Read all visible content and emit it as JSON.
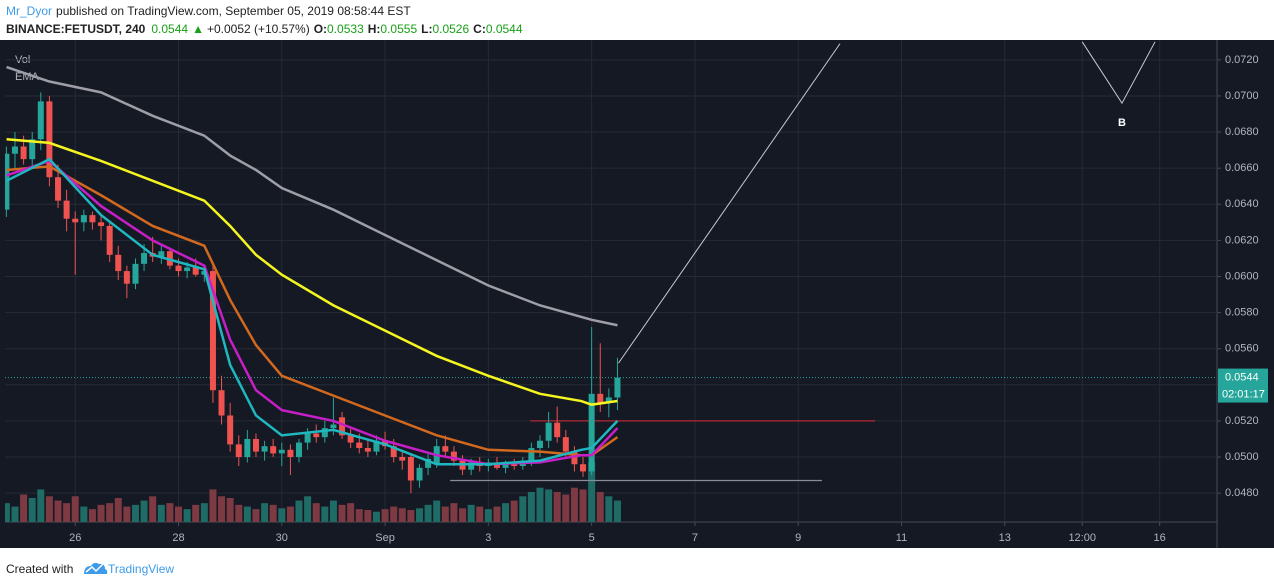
{
  "header": {
    "author": "Mr_Dyor",
    "published": "published on TradingView.com, September 05, 2019 08:58:44 EST",
    "symbol": "BINANCE:FETUSDT, 240",
    "last": "0.0544",
    "arrow": "▲",
    "change": "+0.0052 (+10.57%)",
    "o_label": "O:",
    "o": "0.0533",
    "h_label": "H:",
    "h": "0.0555",
    "l_label": "L:",
    "l": "0.0526",
    "c_label": "C:",
    "c": "0.0544"
  },
  "footer": {
    "created": "Created with",
    "brand": "TradingView"
  },
  "chart_data": {
    "type": "candlestick",
    "legend": [
      "Vol",
      "EMA"
    ],
    "up_color": "#26a69a",
    "down_color": "#ef5350",
    "volume_up_color": "#1f6b66",
    "volume_down_color": "#7d3a42",
    "x": [
      24.667,
      24.833,
      25,
      25.167,
      25.333,
      25.5,
      25.667,
      25.833,
      26,
      26.167,
      26.333,
      26.5,
      26.667,
      26.833,
      27,
      27.167,
      27.333,
      27.5,
      27.667,
      27.833,
      28,
      28.167,
      28.333,
      28.5,
      28.667,
      28.833,
      29,
      29.167,
      29.333,
      29.5,
      29.667,
      29.833,
      30,
      30.167,
      30.333,
      30.5,
      30.667,
      30.833,
      31,
      31.167,
      31.333,
      31.5,
      31.667,
      31.833,
      32,
      32.167,
      32.333,
      32.5,
      32.667,
      32.833,
      33,
      33.167,
      33.333,
      33.5,
      33.667,
      33.833,
      34,
      34.167,
      34.333,
      34.5,
      34.667,
      34.833,
      35,
      35.167,
      35.333,
      35.5,
      35.667,
      35.833,
      36,
      36.167,
      36.333,
      36.5
    ],
    "open": [
      0.0637,
      0.0668,
      0.0672,
      0.0665,
      0.0676,
      0.0697,
      0.0655,
      0.0642,
      0.0632,
      0.063,
      0.0634,
      0.063,
      0.0628,
      0.0612,
      0.0603,
      0.0596,
      0.0607,
      0.0613,
      0.0611,
      0.0614,
      0.0606,
      0.0603,
      0.0605,
      0.0601,
      0.0603,
      0.0537,
      0.0523,
      0.0507,
      0.05,
      0.051,
      0.0503,
      0.0506,
      0.0502,
      0.0504,
      0.05,
      0.0508,
      0.0513,
      0.0511,
      0.0516,
      0.0522,
      0.0512,
      0.0508,
      0.0505,
      0.0503,
      0.0509,
      0.0506,
      0.05,
      0.05,
      0.0487,
      0.0494,
      0.0496,
      0.0506,
      0.0503,
      0.0498,
      0.0493,
      0.0497,
      0.0495,
      0.0497,
      0.0494,
      0.0496,
      0.0495,
      0.0498,
      0.0505,
      0.0509,
      0.0519,
      0.0511,
      0.0503,
      0.0496,
      0.0492,
      0.0535,
      0.053,
      0.0533
    ],
    "high": [
      0.0672,
      0.068,
      0.0678,
      0.068,
      0.0702,
      0.07,
      0.0662,
      0.0648,
      0.0636,
      0.0637,
      0.0636,
      0.0635,
      0.063,
      0.0617,
      0.0606,
      0.061,
      0.0618,
      0.0622,
      0.0618,
      0.0616,
      0.061,
      0.0608,
      0.061,
      0.0606,
      0.0606,
      0.0545,
      0.053,
      0.0512,
      0.0515,
      0.0513,
      0.0509,
      0.051,
      0.0508,
      0.0507,
      0.051,
      0.0516,
      0.0518,
      0.052,
      0.0533,
      0.0525,
      0.0517,
      0.0513,
      0.051,
      0.0512,
      0.0514,
      0.051,
      0.0504,
      0.0502,
      0.0496,
      0.0502,
      0.051,
      0.0512,
      0.0506,
      0.0501,
      0.0499,
      0.05,
      0.0499,
      0.05,
      0.0498,
      0.0499,
      0.05,
      0.0508,
      0.0512,
      0.0525,
      0.0528,
      0.0515,
      0.0506,
      0.05,
      0.0572,
      0.0563,
      0.0538,
      0.0555
    ],
    "low": [
      0.0633,
      0.066,
      0.0662,
      0.066,
      0.067,
      0.065,
      0.0638,
      0.0625,
      0.0601,
      0.0625,
      0.0626,
      0.062,
      0.0608,
      0.0598,
      0.0588,
      0.0593,
      0.0603,
      0.0608,
      0.0607,
      0.0604,
      0.06,
      0.0599,
      0.06,
      0.0597,
      0.053,
      0.0518,
      0.0503,
      0.0495,
      0.0497,
      0.05,
      0.0498,
      0.05,
      0.0495,
      0.049,
      0.0497,
      0.0504,
      0.0508,
      0.0508,
      0.0512,
      0.051,
      0.0505,
      0.0502,
      0.05,
      0.0501,
      0.0504,
      0.0497,
      0.0493,
      0.048,
      0.0483,
      0.049,
      0.0494,
      0.05,
      0.0495,
      0.049,
      0.049,
      0.0492,
      0.0492,
      0.0493,
      0.0491,
      0.0493,
      0.0493,
      0.0495,
      0.05,
      0.0505,
      0.0508,
      0.05,
      0.0492,
      0.0489,
      0.049,
      0.0525,
      0.0522,
      0.0526
    ],
    "close": [
      0.0668,
      0.0672,
      0.0665,
      0.0676,
      0.0697,
      0.0655,
      0.0642,
      0.0632,
      0.063,
      0.0634,
      0.063,
      0.0628,
      0.0612,
      0.0603,
      0.0596,
      0.0607,
      0.0613,
      0.0611,
      0.0614,
      0.0606,
      0.0603,
      0.0605,
      0.0601,
      0.0603,
      0.0537,
      0.0523,
      0.0507,
      0.05,
      0.051,
      0.0503,
      0.0506,
      0.0502,
      0.0504,
      0.05,
      0.0508,
      0.0513,
      0.0511,
      0.0516,
      0.0518,
      0.0512,
      0.0508,
      0.0505,
      0.0503,
      0.0509,
      0.0506,
      0.05,
      0.0498,
      0.0487,
      0.0494,
      0.0499,
      0.0506,
      0.0503,
      0.0498,
      0.0493,
      0.0497,
      0.0495,
      0.0497,
      0.0494,
      0.0496,
      0.0495,
      0.0498,
      0.0505,
      0.0509,
      0.0519,
      0.0511,
      0.0503,
      0.0496,
      0.0492,
      0.0535,
      0.053,
      0.0533,
      0.0544
    ],
    "volume": [
      22,
      18,
      32,
      28,
      38,
      30,
      25,
      22,
      30,
      18,
      15,
      20,
      22,
      28,
      18,
      20,
      25,
      30,
      20,
      22,
      18,
      15,
      20,
      22,
      38,
      30,
      28,
      20,
      18,
      15,
      22,
      20,
      16,
      18,
      25,
      30,
      22,
      18,
      25,
      20,
      22,
      15,
      14,
      12,
      15,
      18,
      16,
      14,
      16,
      20,
      25,
      18,
      22,
      16,
      20,
      18,
      15,
      18,
      22,
      25,
      30,
      35,
      40,
      38,
      35,
      32,
      40,
      38,
      70,
      35,
      30,
      25
    ],
    "ema": [
      {
        "color": "#9e9ea6",
        "x": [
          24.67,
          25.5,
          26.5,
          27.5,
          28.5,
          29,
          29.5,
          30,
          31,
          32,
          33,
          34,
          35,
          36,
          36.5
        ],
        "values": [
          0.0716,
          0.0708,
          0.0702,
          0.0689,
          0.0678,
          0.0667,
          0.0659,
          0.0649,
          0.0637,
          0.0623,
          0.0609,
          0.0595,
          0.0584,
          0.0576,
          0.0573
        ]
      },
      {
        "color": "#f5f520",
        "x": [
          24.67,
          25.5,
          26.5,
          27.5,
          28.5,
          29,
          29.5,
          30,
          31,
          32,
          33,
          34,
          35,
          35.8,
          36,
          36.5
        ],
        "values": [
          0.0676,
          0.0674,
          0.0664,
          0.0653,
          0.0642,
          0.0628,
          0.0612,
          0.0601,
          0.0584,
          0.057,
          0.0556,
          0.0545,
          0.0535,
          0.0531,
          0.0529,
          0.0531
        ]
      },
      {
        "color": "#d2691e",
        "x": [
          24.67,
          25.5,
          26.5,
          27.5,
          28.5,
          29,
          29.5,
          30,
          31,
          32,
          33,
          34,
          35,
          35.8,
          36,
          36.5
        ],
        "values": [
          0.0659,
          0.0661,
          0.0645,
          0.0628,
          0.0617,
          0.0587,
          0.0562,
          0.0545,
          0.0534,
          0.0523,
          0.0512,
          0.0504,
          0.0503,
          0.0501,
          0.0501,
          0.0511
        ]
      },
      {
        "color": "#c71fc7",
        "x": [
          24.67,
          25.5,
          26.5,
          27.5,
          28.5,
          29,
          29.5,
          30,
          31,
          32,
          33,
          34,
          35,
          35.8,
          36,
          36.5
        ],
        "values": [
          0.0656,
          0.0664,
          0.0639,
          0.062,
          0.0606,
          0.0565,
          0.0537,
          0.0526,
          0.052,
          0.0509,
          0.0501,
          0.0496,
          0.0497,
          0.0501,
          0.0501,
          0.0516
        ]
      },
      {
        "color": "#1fb7c0",
        "x": [
          24.67,
          25.5,
          26.5,
          27.5,
          28.5,
          29,
          29.5,
          30,
          31,
          32,
          33,
          34,
          35,
          35.8,
          36,
          36.5
        ],
        "values": [
          0.0653,
          0.0665,
          0.0634,
          0.0612,
          0.0604,
          0.0551,
          0.0523,
          0.0512,
          0.0515,
          0.0507,
          0.0496,
          0.0496,
          0.0498,
          0.0504,
          0.0505,
          0.052
        ]
      }
    ],
    "hlines": [
      {
        "value": 0.052,
        "color": "#b22833",
        "x": [
          34.81,
          41.49
        ]
      },
      {
        "value": 0.0487,
        "color": "#8a8d96",
        "x": [
          33.26,
          40.46
        ]
      }
    ],
    "drawings": [
      {
        "x": [
          36.52,
          40.81
        ],
        "y": [
          0.0552,
          0.0729
        ]
      },
      {
        "x": [
          45.5,
          46.27,
          46.91
        ],
        "y": [
          0.073,
          0.0696,
          0.073
        ],
        "label": "B"
      }
    ],
    "last_price": {
      "value": 0.0544,
      "label": "0.0544"
    },
    "countdown": "02:01:17",
    "xlim": [
      24.64,
      48.11
    ],
    "ylim": [
      0.0464,
      0.0731
    ],
    "xticks": [
      {
        "value": 26,
        "label": "26"
      },
      {
        "value": 28,
        "label": "28"
      },
      {
        "value": 30,
        "label": "30"
      },
      {
        "value": 32,
        "label": "Sep"
      },
      {
        "value": 34,
        "label": "3"
      },
      {
        "value": 36,
        "label": "5"
      },
      {
        "value": 38,
        "label": "7"
      },
      {
        "value": 40,
        "label": "9"
      },
      {
        "value": 42,
        "label": "11"
      },
      {
        "value": 44,
        "label": "13"
      },
      {
        "value": 45.5,
        "label": "12:00"
      },
      {
        "value": 47,
        "label": "16"
      }
    ],
    "yticks": [
      {
        "value": 0.048,
        "label": "0.0480"
      },
      {
        "value": 0.05,
        "label": "0.0500"
      },
      {
        "value": 0.052,
        "label": "0.0520"
      },
      {
        "value": 0.054,
        "label": "0.0540"
      },
      {
        "value": 0.056,
        "label": "0.0560"
      },
      {
        "value": 0.058,
        "label": "0.0580"
      },
      {
        "value": 0.06,
        "label": "0.0600"
      },
      {
        "value": 0.062,
        "label": "0.0620"
      },
      {
        "value": 0.064,
        "label": "0.0640"
      },
      {
        "value": 0.066,
        "label": "0.0660"
      },
      {
        "value": 0.068,
        "label": "0.0680"
      },
      {
        "value": 0.07,
        "label": "0.0700"
      },
      {
        "value": 0.072,
        "label": "0.0720"
      }
    ],
    "grid": true
  }
}
